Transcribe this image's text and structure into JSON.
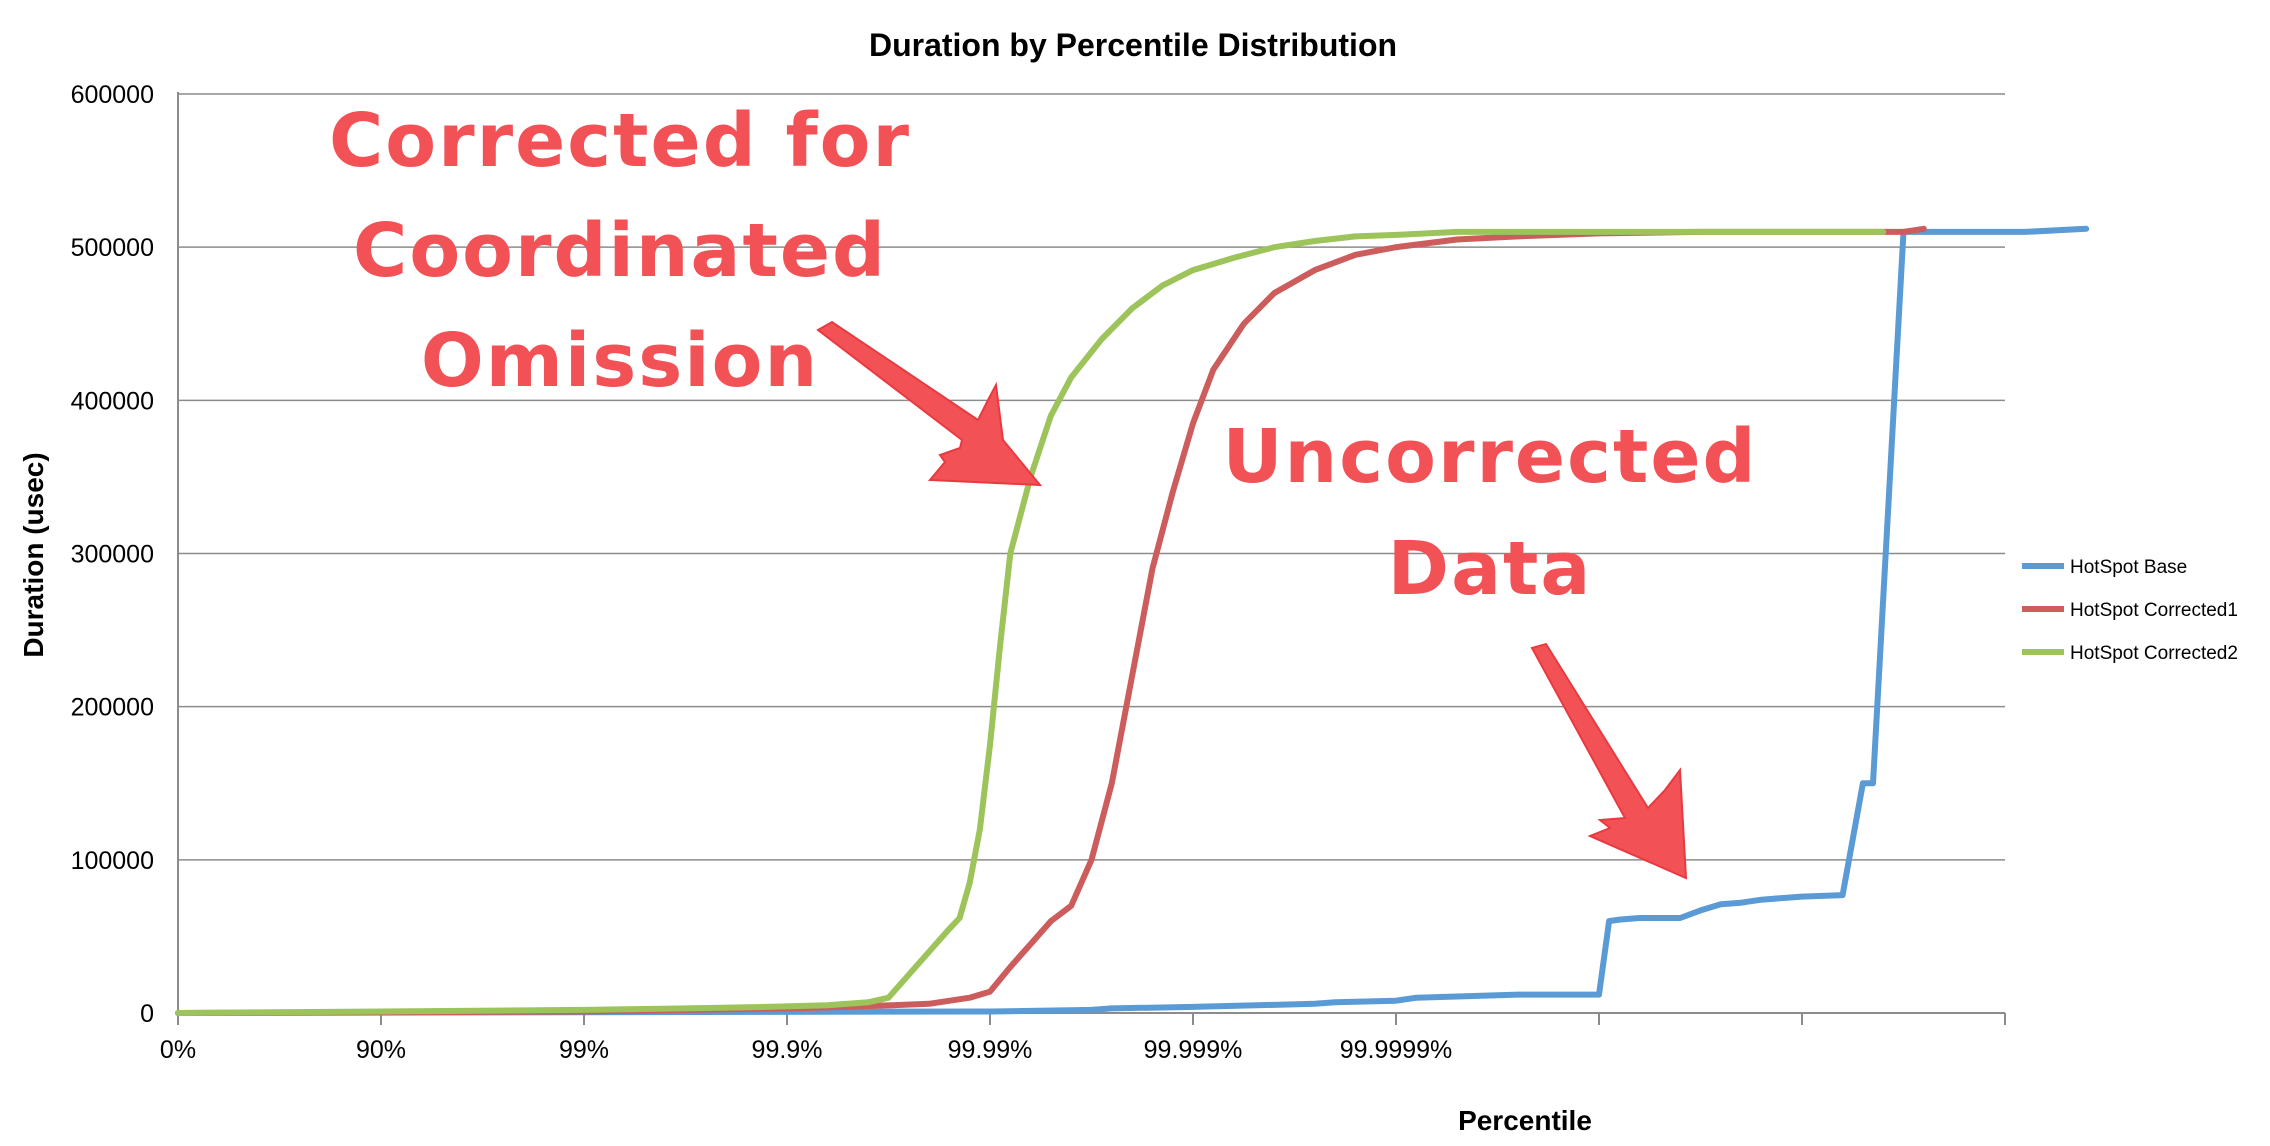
{
  "chart_data": {
    "type": "line",
    "title": "Duration by Percentile Distribution",
    "xlabel": "Percentile",
    "ylabel": "Duration (usec)",
    "ylim": [
      0,
      600000
    ],
    "yticks": [
      "0",
      "100000",
      "200000",
      "300000",
      "400000",
      "500000",
      "600000"
    ],
    "xticks": [
      "0%",
      "90%",
      "99%",
      "99.9%",
      "99.99%",
      "99.999%",
      "99.9999%",
      "",
      ""
    ],
    "x_scale": "nines (log of 1/(1-p)), one tick per decade",
    "grid": true,
    "legend_position": "right",
    "colors": {
      "HotSpot Base": "#5b9bd5",
      "HotSpot Corrected1": "#cd5c5c",
      "HotSpot Corrected2": "#9cc45a"
    },
    "series": [
      {
        "name": "HotSpot Base",
        "x_nines": [
          0,
          4,
          4.5,
          4.6,
          5,
          5.6,
          5.7,
          6,
          6.1,
          6.6,
          7,
          7.05,
          7.1,
          7.2,
          7.4,
          7.5,
          7.6,
          7.7,
          7.8,
          7.9,
          8,
          8.2,
          8.3,
          8.35,
          8.5,
          8.6,
          8.65,
          8.7,
          8.75,
          9,
          9.1,
          9.4
        ],
        "values": [
          0,
          1000,
          2000,
          3000,
          4000,
          6000,
          7000,
          8000,
          10000,
          12000,
          12000,
          60000,
          61000,
          62000,
          62000,
          67000,
          71000,
          72000,
          74000,
          75000,
          76000,
          77000,
          150000,
          150000,
          510000,
          510000,
          510000,
          510000,
          510000,
          510000,
          510000,
          512000
        ]
      },
      {
        "name": "HotSpot Corrected1",
        "x_nines": [
          0,
          2,
          2.5,
          3,
          3.3,
          3.7,
          3.9,
          4.0,
          4.1,
          4.2,
          4.3,
          4.4,
          4.5,
          4.6,
          4.7,
          4.8,
          4.9,
          5.0,
          5.1,
          5.25,
          5.4,
          5.6,
          5.8,
          6.0,
          6.3,
          6.6,
          7,
          7.5,
          8,
          8.5,
          8.6
        ],
        "values": [
          0,
          1000,
          2000,
          3000,
          4000,
          6000,
          10000,
          14000,
          30000,
          45000,
          60000,
          70000,
          100000,
          150000,
          220000,
          290000,
          340000,
          385000,
          420000,
          450000,
          470000,
          485000,
          495000,
          500000,
          505000,
          507000,
          509000,
          510000,
          510000,
          510000,
          512000
        ]
      },
      {
        "name": "HotSpot Corrected2",
        "x_nines": [
          0,
          2,
          2.5,
          2.9,
          3.2,
          3.4,
          3.5,
          3.6,
          3.7,
          3.8,
          3.85,
          3.9,
          3.95,
          4.0,
          4.05,
          4.1,
          4.2,
          4.3,
          4.4,
          4.55,
          4.7,
          4.85,
          5.0,
          5.2,
          5.4,
          5.6,
          5.8,
          6.0,
          6.3,
          6.6,
          7,
          7.5,
          8,
          8.4
        ],
        "values": [
          0,
          2000,
          3000,
          4000,
          5000,
          7000,
          10000,
          25000,
          40000,
          55000,
          62000,
          85000,
          120000,
          175000,
          240000,
          300000,
          350000,
          390000,
          415000,
          440000,
          460000,
          475000,
          485000,
          493000,
          500000,
          504000,
          507000,
          508000,
          510000,
          510000,
          510000,
          510000,
          510000,
          510000
        ]
      }
    ],
    "annotations": [
      {
        "lines": [
          "Corrected for",
          "Coordinated",
          "Omission"
        ],
        "points_to": "HotSpot Corrected2"
      },
      {
        "lines": [
          "Uncorrected",
          "Data"
        ],
        "points_to": "HotSpot Base"
      }
    ]
  }
}
